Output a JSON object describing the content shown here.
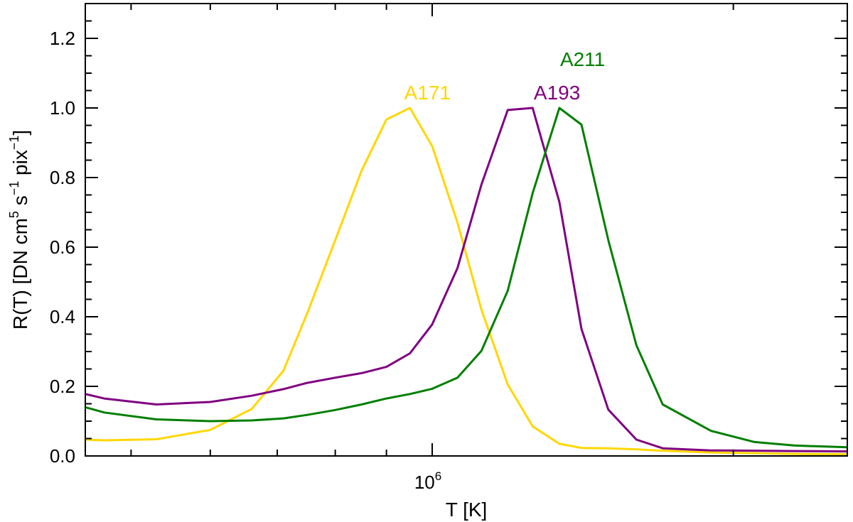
{
  "chart_data": {
    "type": "line",
    "xlabel": "T [K]",
    "ylabel_parts": {
      "main": "R(T) [DN cm",
      "exp1": "5",
      "mid1": " s",
      "exp2": "−1",
      "mid2": " pix",
      "exp3": "−1",
      "end": "]"
    },
    "x_scale": "log",
    "xlim": [
      450000,
      2600000
    ],
    "ylim": [
      0,
      1.3
    ],
    "y_ticks": [
      "0.0",
      "0.2",
      "0.4",
      "0.6",
      "0.8",
      "1.0",
      "1.2"
    ],
    "x_tick_label": {
      "base": "10",
      "exp": "6"
    },
    "series": [
      {
        "name": "A171",
        "color": "#FFD700",
        "x": [
          450000,
          470000,
          530000,
          600000,
          660000,
          710000,
          750000,
          800000,
          850000,
          900000,
          950000,
          1000000,
          1060000,
          1120000,
          1190000,
          1260000,
          1340000,
          1410000,
          1500000,
          1600000,
          1700000,
          1900000,
          2100000,
          2300000,
          2600000
        ],
        "y": [
          0.047,
          0.045,
          0.048,
          0.075,
          0.135,
          0.245,
          0.41,
          0.62,
          0.82,
          0.967,
          1.0,
          0.89,
          0.67,
          0.42,
          0.205,
          0.085,
          0.035,
          0.023,
          0.022,
          0.019,
          0.015,
          0.01,
          0.008,
          0.006,
          0.005
        ]
      },
      {
        "name": "A193",
        "color": "#800080",
        "x": [
          450000,
          470000,
          530000,
          600000,
          660000,
          710000,
          750000,
          800000,
          850000,
          900000,
          950000,
          1000000,
          1060000,
          1120000,
          1190000,
          1260000,
          1340000,
          1410000,
          1500000,
          1600000,
          1700000,
          1900000,
          2100000,
          2300000,
          2600000
        ],
        "y": [
          0.178,
          0.165,
          0.148,
          0.155,
          0.173,
          0.192,
          0.21,
          0.225,
          0.238,
          0.256,
          0.295,
          0.378,
          0.54,
          0.78,
          0.994,
          1.0,
          0.73,
          0.365,
          0.133,
          0.047,
          0.022,
          0.016,
          0.015,
          0.014,
          0.013
        ]
      },
      {
        "name": "A211",
        "color": "#007F00",
        "x": [
          450000,
          470000,
          530000,
          600000,
          660000,
          710000,
          750000,
          800000,
          850000,
          900000,
          950000,
          1000000,
          1060000,
          1120000,
          1190000,
          1260000,
          1340000,
          1410000,
          1500000,
          1600000,
          1700000,
          1900000,
          2100000,
          2300000,
          2600000
        ],
        "y": [
          0.14,
          0.125,
          0.105,
          0.1,
          0.102,
          0.108,
          0.118,
          0.132,
          0.148,
          0.165,
          0.178,
          0.193,
          0.225,
          0.302,
          0.475,
          0.755,
          1.0,
          0.952,
          0.62,
          0.318,
          0.148,
          0.072,
          0.04,
          0.03,
          0.025
        ]
      }
    ],
    "series_labels": [
      {
        "text": "A171",
        "color": "#FFD700",
        "x": 950000,
        "y": 1.025
      },
      {
        "text": "A193",
        "color": "#800080",
        "x": 1280000,
        "y": 1.025
      },
      {
        "text": "A211",
        "color": "#007F00",
        "x": 1360000,
        "y": 1.12
      }
    ],
    "grid": false,
    "legend": "none"
  }
}
